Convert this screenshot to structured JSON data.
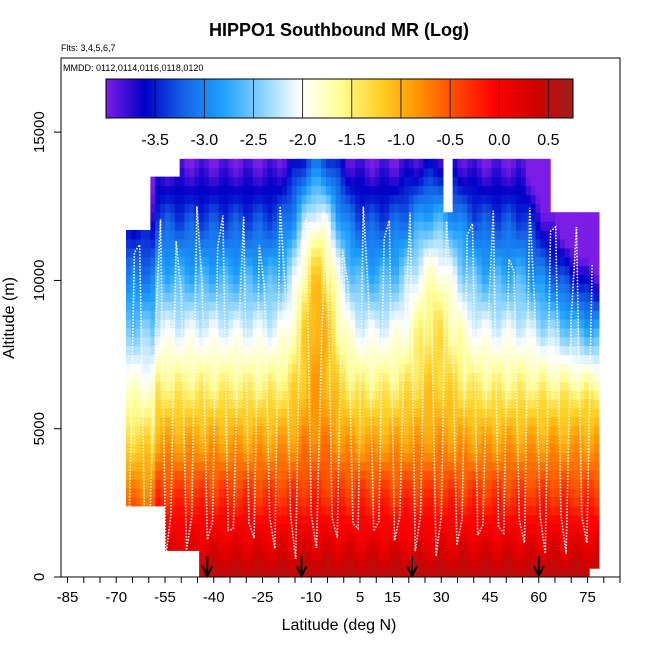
{
  "chart_data": {
    "type": "heatmap",
    "title": "HIPPO1 Southbound MR (Log)",
    "subtitle": "Flts: 3,4,5,6,7",
    "annotation": "MMDD: 0112,0114,0116,0118,0120",
    "xlabel": "Latitude (deg N)",
    "ylabel": "Altitude (m)",
    "xlim": [
      -87,
      85
    ],
    "ylim": [
      0,
      17500
    ],
    "x_ticks": [
      -85,
      -70,
      -55,
      -40,
      -25,
      -10,
      5,
      15,
      30,
      45,
      60,
      75
    ],
    "y_ticks": [
      0,
      5000,
      10000,
      15000
    ],
    "colorbar": {
      "range": [
        -4.0,
        0.75
      ],
      "ticks": [
        -3.5,
        -3.0,
        -2.5,
        -2.0,
        -1.5,
        -1.0,
        -0.5,
        0.0,
        0.5
      ],
      "colors": [
        "#7b1de6",
        "#0000c8",
        "#1463e6",
        "#1ea0ff",
        "#87d2ff",
        "#ffffff",
        "#ffff96",
        "#ffd228",
        "#ff9600",
        "#ff4600",
        "#ff0000",
        "#d20000",
        "#a01e1e"
      ]
    },
    "field_summary": {
      "lat_range": [
        -67,
        78
      ],
      "max_altitude": 14000,
      "surface_value": 0.55,
      "upper_value": -2.8
    },
    "flight_tracks": "white dotted profiles",
    "markers": {
      "latitudes": [
        -42,
        -13,
        21,
        60
      ],
      "symbol": "down-arrow"
    }
  }
}
